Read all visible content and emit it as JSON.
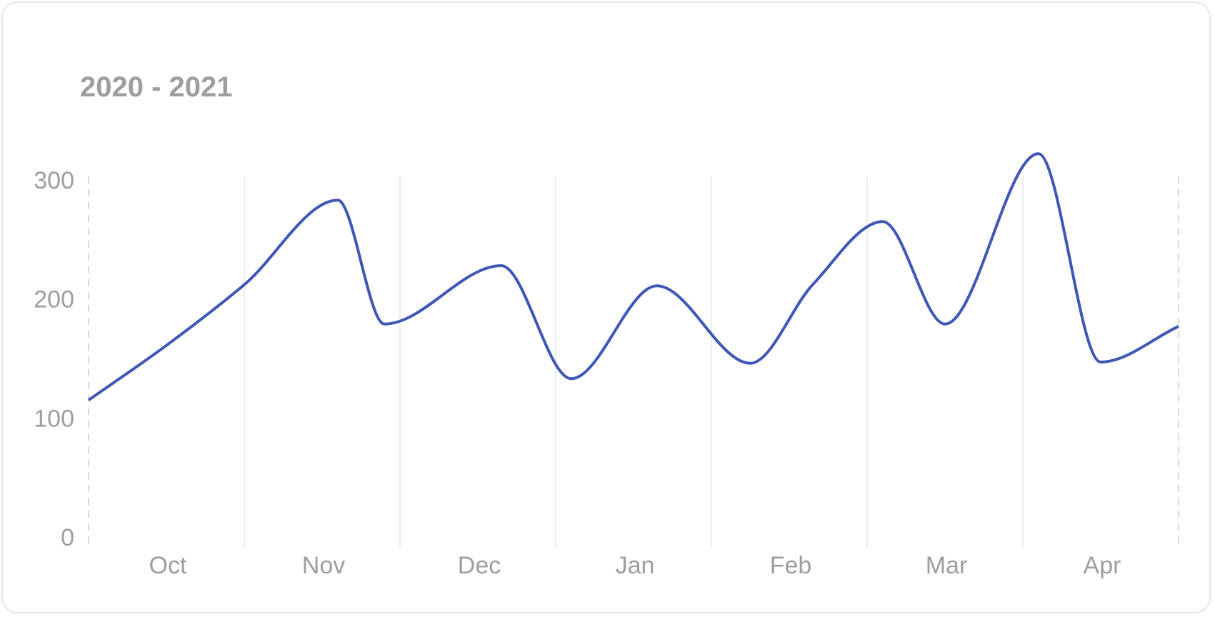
{
  "chart_data": {
    "type": "line",
    "title": "2020 - 2021",
    "xlabel": "",
    "ylabel": "",
    "x_tick_labels": [
      "Oct",
      "Nov",
      "Dec",
      "Jan",
      "Feb",
      "Mar",
      "Apr"
    ],
    "y_tick_labels": [
      "0",
      "100",
      "200",
      "300"
    ],
    "ylim": [
      0,
      300
    ],
    "grid": {
      "vertical": true,
      "horizontal": false
    },
    "series": [
      {
        "color": "#3f57b5",
        "points": [
          {
            "x": 0.0,
            "y": 115
          },
          {
            "x": 0.5,
            "y": 161
          },
          {
            "x": 1.0,
            "y": 212
          },
          {
            "x": 1.6,
            "y": 283
          },
          {
            "x": 1.9,
            "y": 179
          },
          {
            "x": 2.65,
            "y": 228
          },
          {
            "x": 3.1,
            "y": 133
          },
          {
            "x": 3.65,
            "y": 211
          },
          {
            "x": 4.25,
            "y": 146
          },
          {
            "x": 4.65,
            "y": 212
          },
          {
            "x": 5.1,
            "y": 265
          },
          {
            "x": 5.5,
            "y": 179
          },
          {
            "x": 6.1,
            "y": 322
          },
          {
            "x": 6.5,
            "y": 147
          },
          {
            "x": 7.0,
            "y": 177
          }
        ]
      }
    ],
    "colors": {
      "line": "#3f57b5",
      "text": "#9e9e9e",
      "grid": "#ededed"
    }
  }
}
